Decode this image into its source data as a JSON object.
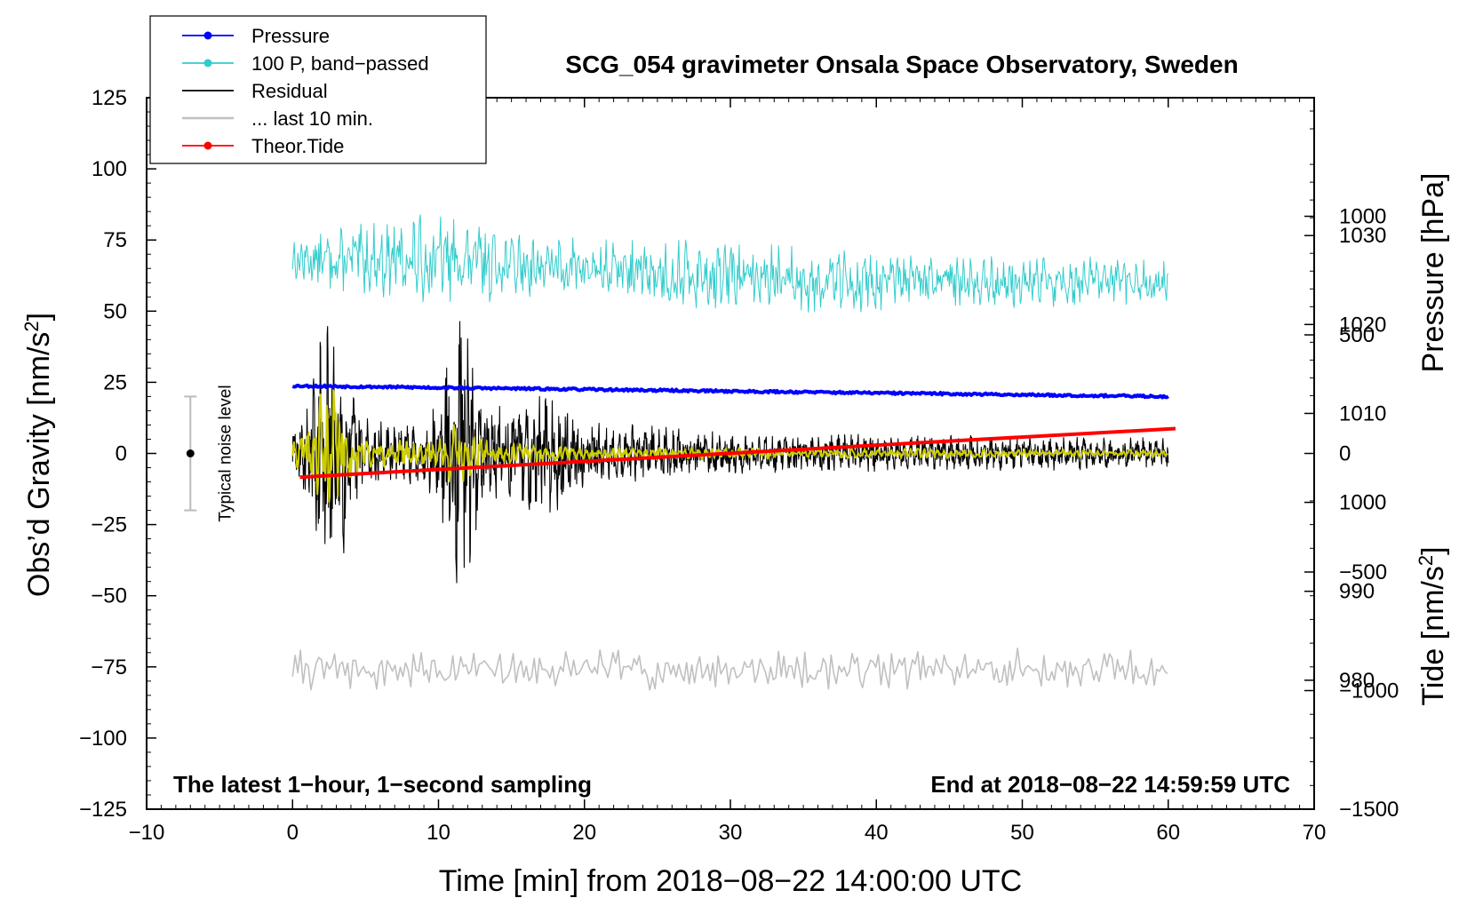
{
  "chart_data": {
    "type": "line",
    "title": "SCG_054 gravimeter Onsala Space Observatory, Sweden",
    "xlabel": "Time [min] from 2018−08−22 14:00:00 UTC",
    "ylabel_left": "Obs’d Gravity [nm/s",
    "ylabel_left_sup": "2",
    "ylabel_left_end": "]",
    "ylabel_pressure": "Pressure [hPa]",
    "ylabel_tide": "Tide [nm/s",
    "ylabel_tide_sup": "2",
    "ylabel_tide_end": "]",
    "xlim": [
      -10,
      70
    ],
    "ylim": [
      -125,
      125
    ],
    "pressure_lim": [
      965.5,
      1045.5
    ],
    "tide_lim": [
      -1500,
      1500
    ],
    "x_ticks": [
      "−10",
      "0",
      "10",
      "20",
      "30",
      "40",
      "50",
      "60",
      "70"
    ],
    "y_ticks": [
      "125",
      "100",
      "75",
      "50",
      "25",
      "0",
      "−25",
      "−50",
      "−75",
      "−100",
      "−125"
    ],
    "pressure_ticks": [
      "1030",
      "1020",
      "1010",
      "1000",
      "990",
      "980"
    ],
    "tide_ticks": [
      "1000",
      "500",
      "0",
      "−500",
      "−1000",
      "−1500"
    ],
    "legend": [
      {
        "label": "Pressure",
        "color": "#0000ff",
        "marker": true
      },
      {
        "label": "100 P, band−passed",
        "color": "#33cccc",
        "marker": true
      },
      {
        "label": "Residual",
        "color": "#000000",
        "marker": false
      },
      {
        "label": "... last 10 min.",
        "color": "#c0c0c0",
        "marker": false
      },
      {
        "label": "Theor.Tide",
        "color": "#ff0000",
        "marker": true
      }
    ],
    "annotations": {
      "bottom_left": "The latest 1−hour, 1−second sampling",
      "bottom_right": "End at 2018−08−22 14:59:59 UTC",
      "noise_label": "Typical noise level"
    },
    "noise_bar": {
      "x": -7,
      "center": 0,
      "half_range": 20
    },
    "series": [
      {
        "name": "Pressure",
        "axis": "pressure",
        "color": "#0000ff",
        "x": [
          0,
          60
        ],
        "values": [
          1013.1,
          1011.9
        ]
      },
      {
        "name": "100 P, band−passed",
        "axis": "gravity",
        "color": "#33cccc",
        "x": [
          0,
          10,
          20,
          30,
          40,
          50,
          60
        ],
        "values": [
          68,
          68,
          65,
          62,
          60,
          60,
          60
        ],
        "amplitude": [
          7,
          12,
          8,
          10,
          8,
          7,
          6
        ]
      },
      {
        "name": "Residual",
        "axis": "gravity",
        "color": "#000000",
        "x": [
          0,
          1,
          2,
          3,
          4,
          5,
          7,
          9,
          10,
          11,
          12,
          13,
          15,
          18,
          20,
          25,
          30,
          60
        ],
        "values": [
          0,
          0,
          0,
          0,
          0,
          0,
          0,
          0,
          0,
          0,
          0,
          0,
          0,
          0,
          0,
          0,
          0,
          0
        ],
        "amplitude": [
          6,
          12,
          33,
          32,
          18,
          10,
          7,
          8,
          14,
          32,
          38,
          14,
          12,
          18,
          8,
          7,
          5,
          4
        ]
      },
      {
        "name": "Residual smoothed",
        "axis": "gravity",
        "color": "#cccc00",
        "x": [
          0,
          1,
          2,
          3,
          4,
          5,
          10,
          11,
          12,
          13,
          20,
          60
        ],
        "values": [
          0,
          0,
          0,
          0,
          0,
          0,
          0,
          0,
          0,
          0,
          0,
          0
        ],
        "amplitude": [
          3,
          8,
          22,
          22,
          10,
          4,
          5,
          10,
          9,
          4,
          2,
          1
        ]
      },
      {
        "name": "Theor.Tide",
        "axis": "tide",
        "color": "#ff0000",
        "x": [
          0.5,
          60.5
        ],
        "values": [
          -100,
          105
        ]
      },
      {
        "name": "... last 10 min.",
        "axis": "gravity",
        "color": "#c0c0c0",
        "x": [
          0,
          60
        ],
        "values": [
          -76,
          -76
        ],
        "amplitude": [
          6,
          6
        ]
      }
    ]
  }
}
